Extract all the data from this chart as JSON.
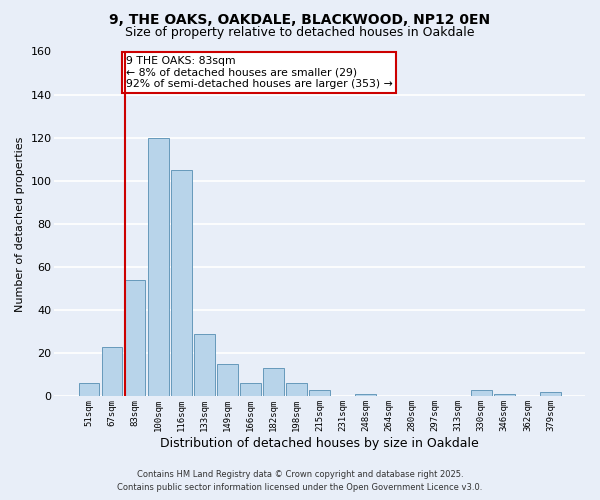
{
  "title": "9, THE OAKS, OAKDALE, BLACKWOOD, NP12 0EN",
  "subtitle": "Size of property relative to detached houses in Oakdale",
  "xlabel": "Distribution of detached houses by size in Oakdale",
  "ylabel": "Number of detached properties",
  "categories": [
    "51sqm",
    "67sqm",
    "83sqm",
    "100sqm",
    "116sqm",
    "133sqm",
    "149sqm",
    "166sqm",
    "182sqm",
    "198sqm",
    "215sqm",
    "231sqm",
    "248sqm",
    "264sqm",
    "280sqm",
    "297sqm",
    "313sqm",
    "330sqm",
    "346sqm",
    "362sqm",
    "379sqm"
  ],
  "values": [
    6,
    23,
    54,
    120,
    105,
    29,
    15,
    6,
    13,
    6,
    3,
    0,
    1,
    0,
    0,
    0,
    0,
    3,
    1,
    0,
    2
  ],
  "bar_color": "#b8d4ea",
  "bar_edge_color": "#6699bb",
  "highlight_bar_index": 2,
  "highlight_line_color": "#cc0000",
  "ylim": [
    0,
    160
  ],
  "yticks": [
    0,
    20,
    40,
    60,
    80,
    100,
    120,
    140,
    160
  ],
  "annotation_title": "9 THE OAKS: 83sqm",
  "annotation_line1": "← 8% of detached houses are smaller (29)",
  "annotation_line2": "92% of semi-detached houses are larger (353) →",
  "annotation_box_color": "#ffffff",
  "annotation_box_edge_color": "#cc0000",
  "footer_line1": "Contains HM Land Registry data © Crown copyright and database right 2025.",
  "footer_line2": "Contains public sector information licensed under the Open Government Licence v3.0.",
  "bg_color": "#e8eef8",
  "grid_color": "#ffffff",
  "title_fontsize": 10,
  "subtitle_fontsize": 9
}
